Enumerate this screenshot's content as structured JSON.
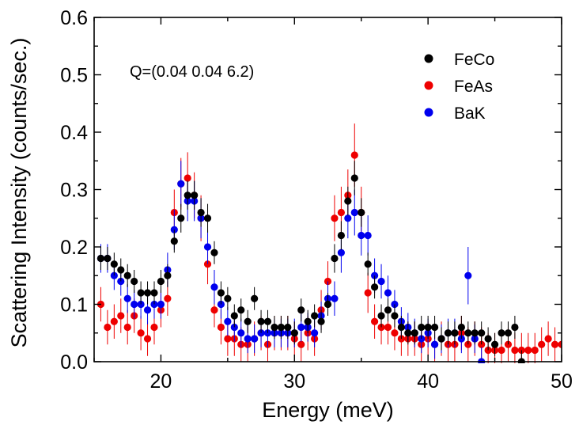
{
  "chart_data": {
    "type": "scatter",
    "title": "",
    "xlabel": "Energy (meV)",
    "ylabel": "Scattering Intensity (counts/sec.)",
    "xlim": [
      15,
      50
    ],
    "ylim": [
      0.0,
      0.6
    ],
    "xticks": [
      20,
      30,
      40,
      50
    ],
    "xtick_labels": [
      "20",
      "30",
      "40",
      "50"
    ],
    "yticks": [
      0.0,
      0.1,
      0.2,
      0.3,
      0.4,
      0.5,
      0.6
    ],
    "ytick_labels": [
      "0.0",
      "0.1",
      "0.2",
      "0.3",
      "0.4",
      "0.5",
      "0.6"
    ],
    "annotation": "Q=(0.04 0.04 6.2)",
    "legend_position": "top-right",
    "grid": false,
    "series": [
      {
        "name": "FeCo",
        "color": "#000000",
        "points": [
          [
            15.5,
            0.18,
            0.02
          ],
          [
            16.0,
            0.18,
            0.02
          ],
          [
            16.5,
            0.17,
            0.02
          ],
          [
            17.0,
            0.16,
            0.02
          ],
          [
            17.5,
            0.15,
            0.02
          ],
          [
            18.0,
            0.14,
            0.02
          ],
          [
            18.5,
            0.12,
            0.02
          ],
          [
            19.0,
            0.12,
            0.02
          ],
          [
            19.5,
            0.12,
            0.02
          ],
          [
            20.0,
            0.14,
            0.02
          ],
          [
            20.5,
            0.15,
            0.02
          ],
          [
            21.0,
            0.21,
            0.02
          ],
          [
            21.5,
            0.25,
            0.025
          ],
          [
            22.0,
            0.29,
            0.025
          ],
          [
            22.5,
            0.29,
            0.025
          ],
          [
            23.0,
            0.26,
            0.025
          ],
          [
            23.5,
            0.25,
            0.025
          ],
          [
            24.0,
            0.19,
            0.02
          ],
          [
            24.5,
            0.12,
            0.02
          ],
          [
            25.0,
            0.11,
            0.02
          ],
          [
            25.5,
            0.08,
            0.02
          ],
          [
            26.0,
            0.09,
            0.02
          ],
          [
            26.5,
            0.07,
            0.02
          ],
          [
            27.0,
            0.11,
            0.02
          ],
          [
            27.5,
            0.07,
            0.02
          ],
          [
            28.0,
            0.07,
            0.02
          ],
          [
            28.5,
            0.06,
            0.02
          ],
          [
            29.0,
            0.06,
            0.02
          ],
          [
            29.5,
            0.06,
            0.02
          ],
          [
            30.0,
            0.05,
            0.02
          ],
          [
            30.5,
            0.09,
            0.02
          ],
          [
            31.0,
            0.07,
            0.02
          ],
          [
            31.5,
            0.08,
            0.02
          ],
          [
            32.0,
            0.07,
            0.02
          ],
          [
            32.5,
            0.1,
            0.02
          ],
          [
            33.0,
            0.18,
            0.025
          ],
          [
            33.5,
            0.22,
            0.025
          ],
          [
            34.0,
            0.28,
            0.025
          ],
          [
            34.5,
            0.32,
            0.03
          ],
          [
            35.0,
            0.26,
            0.025
          ],
          [
            35.5,
            0.17,
            0.02
          ],
          [
            36.0,
            0.13,
            0.02
          ],
          [
            36.5,
            0.08,
            0.02
          ],
          [
            37.0,
            0.09,
            0.02
          ],
          [
            37.5,
            0.08,
            0.02
          ],
          [
            38.0,
            0.06,
            0.02
          ],
          [
            38.5,
            0.05,
            0.02
          ],
          [
            39.0,
            0.05,
            0.02
          ],
          [
            39.5,
            0.06,
            0.02
          ],
          [
            40.0,
            0.06,
            0.02
          ],
          [
            40.5,
            0.06,
            0.02
          ],
          [
            41.0,
            0.04,
            0.02
          ],
          [
            41.5,
            0.05,
            0.02
          ],
          [
            42.0,
            0.05,
            0.02
          ],
          [
            42.5,
            0.06,
            0.02
          ],
          [
            43.0,
            0.05,
            0.02
          ],
          [
            43.5,
            0.05,
            0.02
          ],
          [
            44.0,
            0.05,
            0.02
          ],
          [
            44.5,
            0.04,
            0.02
          ],
          [
            45.0,
            0.03,
            0.02
          ],
          [
            45.5,
            0.05,
            0.02
          ],
          [
            46.0,
            0.05,
            0.02
          ],
          [
            46.5,
            0.06,
            0.02
          ],
          [
            47.0,
            0.0,
            0.02
          ]
        ]
      },
      {
        "name": "FeAs",
        "color": "#ee0000",
        "points": [
          [
            15.5,
            0.1,
            0.03
          ],
          [
            16.0,
            0.06,
            0.03
          ],
          [
            16.5,
            0.07,
            0.03
          ],
          [
            17.0,
            0.08,
            0.03
          ],
          [
            17.5,
            0.06,
            0.03
          ],
          [
            18.0,
            0.08,
            0.03
          ],
          [
            18.5,
            0.05,
            0.03
          ],
          [
            19.0,
            0.04,
            0.03
          ],
          [
            19.5,
            0.06,
            0.03
          ],
          [
            20.0,
            0.09,
            0.03
          ],
          [
            20.5,
            0.11,
            0.03
          ],
          [
            21.0,
            0.26,
            0.04
          ],
          [
            21.5,
            0.31,
            0.045
          ],
          [
            22.0,
            0.32,
            0.045
          ],
          [
            22.5,
            0.29,
            0.04
          ],
          [
            23.0,
            0.25,
            0.04
          ],
          [
            23.5,
            0.17,
            0.035
          ],
          [
            24.0,
            0.09,
            0.03
          ],
          [
            24.5,
            0.06,
            0.03
          ],
          [
            25.0,
            0.04,
            0.03
          ],
          [
            25.5,
            0.04,
            0.03
          ],
          [
            26.0,
            0.03,
            0.03
          ],
          [
            26.5,
            0.03,
            0.03
          ],
          [
            27.0,
            0.04,
            0.03
          ],
          [
            27.5,
            0.05,
            0.03
          ],
          [
            28.0,
            0.03,
            0.03
          ],
          [
            28.5,
            0.05,
            0.03
          ],
          [
            29.0,
            0.05,
            0.03
          ],
          [
            29.5,
            0.05,
            0.03
          ],
          [
            30.0,
            0.04,
            0.03
          ],
          [
            30.5,
            0.03,
            0.03
          ],
          [
            31.0,
            0.05,
            0.03
          ],
          [
            31.5,
            0.04,
            0.03
          ],
          [
            32.0,
            0.09,
            0.035
          ],
          [
            32.5,
            0.14,
            0.035
          ],
          [
            33.0,
            0.25,
            0.04
          ],
          [
            33.5,
            0.26,
            0.045
          ],
          [
            34.0,
            0.29,
            0.045
          ],
          [
            34.5,
            0.36,
            0.055
          ],
          [
            35.0,
            0.26,
            0.045
          ],
          [
            35.5,
            0.12,
            0.035
          ],
          [
            36.0,
            0.07,
            0.03
          ],
          [
            36.5,
            0.06,
            0.03
          ],
          [
            37.0,
            0.06,
            0.03
          ],
          [
            37.5,
            0.05,
            0.03
          ],
          [
            38.0,
            0.04,
            0.03
          ],
          [
            38.5,
            0.04,
            0.03
          ],
          [
            39.0,
            0.04,
            0.03
          ],
          [
            39.5,
            0.03,
            0.03
          ],
          [
            40.0,
            0.04,
            0.03
          ],
          [
            40.5,
            0.03,
            0.03
          ],
          [
            41.0,
            0.04,
            0.03
          ],
          [
            41.5,
            0.03,
            0.03
          ],
          [
            42.0,
            0.03,
            0.03
          ],
          [
            42.5,
            0.05,
            0.03
          ],
          [
            43.0,
            0.03,
            0.03
          ],
          [
            43.5,
            0.04,
            0.03
          ],
          [
            44.0,
            0.03,
            0.03
          ],
          [
            44.5,
            0.02,
            0.03
          ],
          [
            45.0,
            0.02,
            0.03
          ],
          [
            45.5,
            0.02,
            0.03
          ],
          [
            46.0,
            0.03,
            0.03
          ],
          [
            46.5,
            0.02,
            0.03
          ],
          [
            47.0,
            0.02,
            0.03
          ],
          [
            47.5,
            0.02,
            0.03
          ],
          [
            48.0,
            0.02,
            0.03
          ],
          [
            48.5,
            0.03,
            0.03
          ],
          [
            49.0,
            0.04,
            0.03
          ],
          [
            49.5,
            0.03,
            0.03
          ],
          [
            50.0,
            0.03,
            0.03
          ]
        ]
      },
      {
        "name": "BaK",
        "color": "#0000ee",
        "points": [
          [
            15.5,
            0.18,
            0.025
          ],
          [
            16.0,
            0.18,
            0.025
          ],
          [
            16.5,
            0.15,
            0.025
          ],
          [
            17.0,
            0.14,
            0.025
          ],
          [
            17.5,
            0.11,
            0.025
          ],
          [
            18.0,
            0.1,
            0.025
          ],
          [
            18.5,
            0.1,
            0.025
          ],
          [
            19.0,
            0.09,
            0.025
          ],
          [
            19.5,
            0.1,
            0.025
          ],
          [
            20.0,
            0.1,
            0.025
          ],
          [
            20.5,
            0.16,
            0.03
          ],
          [
            21.0,
            0.23,
            0.035
          ],
          [
            21.5,
            0.31,
            0.04
          ],
          [
            22.0,
            0.28,
            0.035
          ],
          [
            22.5,
            0.28,
            0.035
          ],
          [
            23.0,
            0.25,
            0.035
          ],
          [
            23.5,
            0.2,
            0.03
          ],
          [
            24.0,
            0.13,
            0.03
          ],
          [
            24.5,
            0.1,
            0.025
          ],
          [
            25.0,
            0.07,
            0.025
          ],
          [
            25.5,
            0.06,
            0.025
          ],
          [
            26.0,
            0.05,
            0.025
          ],
          [
            26.5,
            0.04,
            0.025
          ],
          [
            27.0,
            0.04,
            0.025
          ],
          [
            27.5,
            0.05,
            0.025
          ],
          [
            28.0,
            0.05,
            0.025
          ],
          [
            28.5,
            0.05,
            0.025
          ],
          [
            29.0,
            0.05,
            0.025
          ],
          [
            29.5,
            0.05,
            0.025
          ],
          [
            30.0,
            0.05,
            0.025
          ],
          [
            30.5,
            0.06,
            0.025
          ],
          [
            31.0,
            0.06,
            0.025
          ],
          [
            31.5,
            0.05,
            0.025
          ],
          [
            32.0,
            0.08,
            0.025
          ],
          [
            32.5,
            0.11,
            0.03
          ],
          [
            33.0,
            0.11,
            0.03
          ],
          [
            33.5,
            0.19,
            0.035
          ],
          [
            34.0,
            0.25,
            0.035
          ],
          [
            34.5,
            0.26,
            0.04
          ],
          [
            35.0,
            0.22,
            0.035
          ],
          [
            35.5,
            0.22,
            0.035
          ],
          [
            36.0,
            0.15,
            0.03
          ],
          [
            36.5,
            0.14,
            0.03
          ],
          [
            37.0,
            0.12,
            0.03
          ],
          [
            37.5,
            0.1,
            0.025
          ],
          [
            38.0,
            0.07,
            0.025
          ],
          [
            38.5,
            0.06,
            0.025
          ],
          [
            39.0,
            0.05,
            0.025
          ],
          [
            39.5,
            0.04,
            0.025
          ],
          [
            40.0,
            0.05,
            0.025
          ],
          [
            40.5,
            0.03,
            0.025
          ],
          [
            41.0,
            0.04,
            0.025
          ],
          [
            41.5,
            0.05,
            0.025
          ],
          [
            42.0,
            0.05,
            0.025
          ],
          [
            42.5,
            0.04,
            0.025
          ],
          [
            43.0,
            0.15,
            0.05
          ],
          [
            43.5,
            0.04,
            0.025
          ],
          [
            44.0,
            0.0,
            0.025
          ]
        ]
      }
    ]
  }
}
